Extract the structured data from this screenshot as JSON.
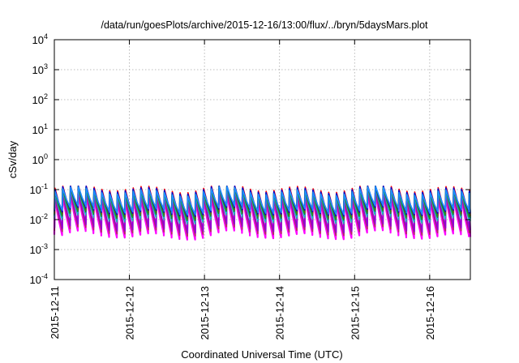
{
  "chart_data": {
    "type": "line",
    "title": "/data/run/goesPlots/archive/2015-12-16/13:00/flux/../bryn/5daysMars.plot",
    "xlabel": "Coordinated Universal Time (UTC)",
    "ylabel": "cSv/day",
    "yscale": "log",
    "ylim": [
      0.0001,
      10000
    ],
    "y_ticks": [
      {
        "base": "10",
        "exp": "-4"
      },
      {
        "base": "10",
        "exp": "-3"
      },
      {
        "base": "10",
        "exp": "-2"
      },
      {
        "base": "10",
        "exp": "-1"
      },
      {
        "base": "10",
        "exp": "0"
      },
      {
        "base": "10",
        "exp": "1"
      },
      {
        "base": "10",
        "exp": "2"
      },
      {
        "base": "10",
        "exp": "3"
      },
      {
        "base": "10",
        "exp": "4"
      }
    ],
    "xlim": [
      "2015-12-11",
      "2015-12-16 13:00"
    ],
    "x_ticks": [
      "2015-12-11",
      "2015-12-12",
      "2015-12-13",
      "2015-12-14",
      "2015-12-15",
      "2015-12-16"
    ],
    "grid": true,
    "legend": "none",
    "sawtooth_period_hours": 2.5,
    "series": [
      {
        "color": "#ff00ff",
        "peak": 0.05,
        "trough": 0.003
      },
      {
        "color": "#b03060",
        "peak": 0.06,
        "trough": 0.004
      },
      {
        "color": "#9400d3",
        "peak": 0.07,
        "trough": 0.005
      },
      {
        "color": "#20b2aa",
        "peak": 0.08,
        "trough": 0.01
      },
      {
        "color": "#00bfff",
        "peak": 0.09,
        "trough": 0.012
      },
      {
        "color": "#ff0000",
        "peak": 0.11,
        "trough": 0.015
      },
      {
        "color": "#228b22",
        "peak": 0.09,
        "trough": 0.013
      },
      {
        "color": "#0000cd",
        "peak": 0.1,
        "trough": 0.018
      },
      {
        "color": "#1e90ff",
        "peak": 0.085,
        "trough": 0.02
      }
    ]
  }
}
